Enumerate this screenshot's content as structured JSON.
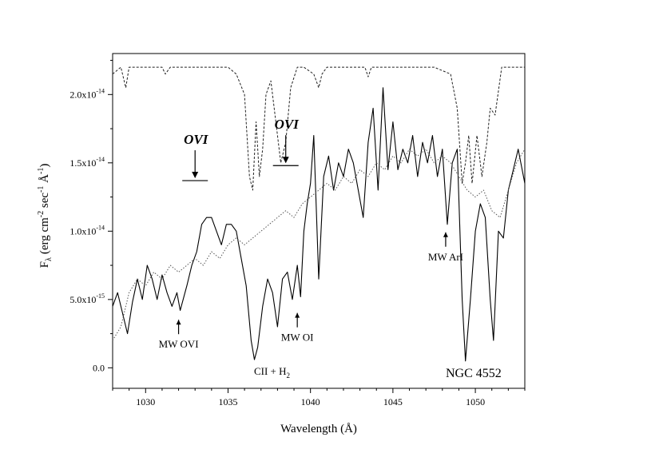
{
  "chart_data": {
    "type": "line",
    "title": "",
    "xlabel": "Wavelength (Å)",
    "ylabel_main": "F",
    "ylabel_sub": "λ",
    "ylabel_units": "(erg cm",
    "ylabel_exp1": "-2",
    "ylabel_mid": " sec",
    "ylabel_exp2": "-1",
    "ylabel_aa": " Å",
    "ylabel_exp3": "-1",
    "ylabel_close": ")",
    "xlim": [
      1028,
      1053
    ],
    "ylim": [
      -1.5e-15,
      2.3e-14
    ],
    "x_ticks": [
      {
        "value": 1030,
        "label": "1030"
      },
      {
        "value": 1035,
        "label": "1035"
      },
      {
        "value": 1040,
        "label": "1040"
      },
      {
        "value": 1045,
        "label": "1045"
      },
      {
        "value": 1050,
        "label": "1050"
      }
    ],
    "y_ticks": [
      {
        "value": 0,
        "mant": "0.0",
        "exp": ""
      },
      {
        "value": 5e-15,
        "mant": "5.0x10",
        "exp": "-15"
      },
      {
        "value": 1e-14,
        "mant": "1.0x10",
        "exp": "-14"
      },
      {
        "value": 1.5e-14,
        "mant": "1.5x10",
        "exp": "-14"
      },
      {
        "value": 2e-14,
        "mant": "2.0x10",
        "exp": "-14"
      }
    ],
    "series": [
      {
        "style": "solid",
        "x": [
          1028.0,
          1028.3,
          1028.6,
          1028.9,
          1029.2,
          1029.5,
          1029.8,
          1030.1,
          1030.4,
          1030.7,
          1031.0,
          1031.3,
          1031.6,
          1031.9,
          1032.1,
          1032.5,
          1032.8,
          1033.1,
          1033.4,
          1033.7,
          1034.0,
          1034.3,
          1034.6,
          1034.9,
          1035.2,
          1035.5,
          1035.8,
          1036.1,
          1036.4,
          1036.6,
          1036.8,
          1037.1,
          1037.4,
          1037.7,
          1038.0,
          1038.3,
          1038.6,
          1038.9,
          1039.2,
          1039.4,
          1039.6,
          1039.8,
          1040.0,
          1040.2,
          1040.5,
          1040.8,
          1041.1,
          1041.4,
          1041.7,
          1042.0,
          1042.3,
          1042.6,
          1042.9,
          1043.2,
          1043.5,
          1043.8,
          1044.1,
          1044.4,
          1044.7,
          1045.0,
          1045.3,
          1045.6,
          1045.9,
          1046.2,
          1046.5,
          1046.8,
          1047.1,
          1047.4,
          1047.7,
          1048.0,
          1048.3,
          1048.6,
          1048.9,
          1049.2,
          1049.4,
          1049.7,
          1050.0,
          1050.3,
          1050.6,
          1050.9,
          1051.1,
          1051.4,
          1051.7,
          1052.0,
          1052.3,
          1052.6,
          1053.0
        ],
        "y": [
          4.5e-15,
          5.5e-15,
          4e-15,
          2.5e-15,
          4.8e-15,
          6.5e-15,
          5e-15,
          7.5e-15,
          6.5e-15,
          5e-15,
          6.8e-15,
          5.5e-15,
          4.5e-15,
          5.5e-15,
          4.2e-15,
          6e-15,
          7.5e-15,
          8.5e-15,
          1.05e-14,
          1.1e-14,
          1.1e-14,
          1e-14,
          9e-15,
          1.05e-14,
          1.05e-14,
          1e-14,
          8e-15,
          6e-15,
          2e-15,
          6e-16,
          1.5e-15,
          4.5e-15,
          6.5e-15,
          5.5e-15,
          3e-15,
          6.5e-15,
          7e-15,
          5e-15,
          7.5e-15,
          5.2e-15,
          1e-14,
          1.2e-14,
          1.35e-14,
          1.7e-14,
          6.5e-15,
          1.4e-14,
          1.55e-14,
          1.3e-14,
          1.5e-14,
          1.4e-14,
          1.6e-14,
          1.5e-14,
          1.3e-14,
          1.1e-14,
          1.65e-14,
          1.9e-14,
          1.3e-14,
          2.05e-14,
          1.45e-14,
          1.8e-14,
          1.45e-14,
          1.6e-14,
          1.5e-14,
          1.7e-14,
          1.4e-14,
          1.65e-14,
          1.5e-14,
          1.7e-14,
          1.4e-14,
          1.6e-14,
          1.05e-14,
          1.5e-14,
          1.6e-14,
          5e-15,
          5e-16,
          5e-15,
          1e-14,
          1.2e-14,
          1.1e-14,
          5e-15,
          2e-15,
          1e-14,
          9.5e-15,
          1.3e-14,
          1.45e-14,
          1.6e-14,
          1.35e-14
        ]
      },
      {
        "style": "dotted",
        "x": [
          1028.0,
          1028.5,
          1029.0,
          1029.5,
          1030.0,
          1030.5,
          1031.0,
          1031.5,
          1032.0,
          1032.5,
          1033.0,
          1033.5,
          1034.0,
          1034.5,
          1035.0,
          1035.5,
          1036.0,
          1036.5,
          1037.0,
          1037.5,
          1038.0,
          1038.5,
          1039.0,
          1039.5,
          1040.0,
          1040.5,
          1041.0,
          1041.5,
          1042.0,
          1042.5,
          1043.0,
          1043.5,
          1044.0,
          1044.5,
          1045.0,
          1045.5,
          1046.0,
          1046.5,
          1047.0,
          1047.5,
          1048.0,
          1048.5,
          1049.0,
          1049.5,
          1050.0,
          1050.5,
          1051.0,
          1051.5,
          1052.0,
          1052.5,
          1053.0
        ],
        "y": [
          2e-15,
          3e-15,
          5.5e-15,
          6.5e-15,
          6e-15,
          7e-15,
          6.5e-15,
          7.5e-15,
          7e-15,
          7.5e-15,
          8e-15,
          7.5e-15,
          8.5e-15,
          8e-15,
          9e-15,
          9.5e-15,
          9e-15,
          9.5e-15,
          1e-14,
          1.05e-14,
          1.1e-14,
          1.15e-14,
          1.1e-14,
          1.2e-14,
          1.25e-14,
          1.3e-14,
          1.35e-14,
          1.3e-14,
          1.4e-14,
          1.35e-14,
          1.45e-14,
          1.4e-14,
          1.5e-14,
          1.45e-14,
          1.55e-14,
          1.5e-14,
          1.6e-14,
          1.55e-14,
          1.6e-14,
          1.5e-14,
          1.55e-14,
          1.5e-14,
          1.4e-14,
          1.3e-14,
          1.25e-14,
          1.3e-14,
          1.15e-14,
          1.1e-14,
          1.3e-14,
          1.5e-14,
          1.6e-14
        ]
      },
      {
        "style": "dashed",
        "x": [
          1028.0,
          1028.5,
          1028.8,
          1029.0,
          1029.5,
          1030.5,
          1031.0,
          1031.2,
          1031.5,
          1032.5,
          1033.5,
          1034.5,
          1035.0,
          1035.5,
          1036.0,
          1036.3,
          1036.5,
          1036.7,
          1036.9,
          1037.1,
          1037.3,
          1037.6,
          1038.0,
          1038.2,
          1038.5,
          1038.8,
          1039.2,
          1039.6,
          1040.2,
          1040.5,
          1040.7,
          1041.0,
          1042.0,
          1043.3,
          1043.5,
          1043.7,
          1044.5,
          1045.5,
          1046.5,
          1047.5,
          1048.5,
          1048.9,
          1049.2,
          1049.4,
          1049.6,
          1049.8,
          1050.1,
          1050.4,
          1050.7,
          1050.9,
          1051.2,
          1051.6,
          1052.0,
          1052.5,
          1053.0
        ],
        "y": [
          2.15e-14,
          2.2e-14,
          2.05e-14,
          2.2e-14,
          2.2e-14,
          2.2e-14,
          2.2e-14,
          2.15e-14,
          2.2e-14,
          2.2e-14,
          2.2e-14,
          2.2e-14,
          2.2e-14,
          2.15e-14,
          2e-14,
          1.4e-14,
          1.3e-14,
          1.8e-14,
          1.4e-14,
          1.6e-14,
          2e-14,
          2.1e-14,
          1.7e-14,
          1.5e-14,
          1.65e-14,
          2.05e-14,
          2.2e-14,
          2.2e-14,
          2.15e-14,
          2.05e-14,
          2.15e-14,
          2.2e-14,
          2.2e-14,
          2.2e-14,
          2.13e-14,
          2.2e-14,
          2.2e-14,
          2.2e-14,
          2.2e-14,
          2.2e-14,
          2.15e-14,
          1.9e-14,
          1.35e-14,
          1.5e-14,
          1.7e-14,
          1.35e-14,
          1.7e-14,
          1.4e-14,
          1.65e-14,
          1.9e-14,
          1.85e-14,
          2.2e-14,
          2.2e-14,
          2.2e-14,
          2.2e-14
        ]
      }
    ],
    "annotations": [
      {
        "id": "mw-ovi",
        "text": "MW OVI",
        "x": 1032.0,
        "y": 4.1e-15
      },
      {
        "id": "cii-h2",
        "text": "CII + H",
        "sub": "2",
        "x": 1036.6,
        "y": 0
      },
      {
        "id": "mw-oi",
        "text": "MW OI",
        "x": 1039.2,
        "y": 4.6e-15
      },
      {
        "id": "mw-ari",
        "text": "MW ArI",
        "x": 1048.2,
        "y": 1.05e-14
      }
    ],
    "ion_labels": [
      {
        "id": "ovi-left",
        "text": "OVI",
        "x": 1033.0,
        "y": 1.37e-14
      },
      {
        "id": "ovi-right",
        "text": "OVI",
        "x": 1038.5,
        "y": 1.48e-14
      }
    ],
    "object_name": "NGC 4552"
  }
}
